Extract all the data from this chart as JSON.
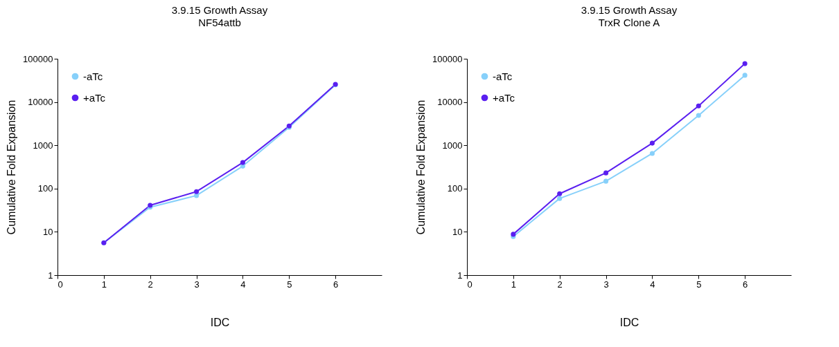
{
  "chart_data": [
    {
      "type": "line",
      "title": "3.9.15 Growth Assay",
      "subtitle": "NF54attb",
      "xlabel": "IDC",
      "ylabel": "Cumulative Fold Expansion",
      "x": [
        1,
        2,
        3,
        4,
        5,
        6
      ],
      "xlim": [
        0,
        7
      ],
      "xticks": [
        0,
        1,
        2,
        3,
        4,
        5,
        6
      ],
      "ylim": [
        1,
        100000
      ],
      "yticks": [
        1,
        10,
        100,
        1000,
        10000,
        100000
      ],
      "log": "y",
      "legend": "top left",
      "marker": "circle",
      "series": [
        {
          "name": "-aTc",
          "color": "#87d0fa",
          "values": [
            5.6,
            37,
            69,
            330,
            2600,
            25000
          ]
        },
        {
          "name": "+aTc",
          "color": "#5a1ff0",
          "values": [
            5.6,
            41,
            85,
            400,
            2800,
            25700
          ]
        }
      ]
    },
    {
      "type": "line",
      "title": "3.9.15 Growth Assay",
      "subtitle": "TrxR Clone A",
      "xlabel": "IDC",
      "ylabel": "Cumulative Fold Expansion",
      "x": [
        1,
        2,
        3,
        4,
        5,
        6
      ],
      "xlim": [
        0,
        7
      ],
      "xticks": [
        0,
        1,
        2,
        3,
        4,
        5,
        6
      ],
      "ylim": [
        1,
        100000
      ],
      "yticks": [
        1,
        10,
        100,
        1000,
        10000,
        100000
      ],
      "log": "y",
      "legend": "top left",
      "marker": "circle",
      "series": [
        {
          "name": "-aTc",
          "color": "#87d0fa",
          "values": [
            7.8,
            59,
            148,
            650,
            4900,
            41500
          ]
        },
        {
          "name": "+aTc",
          "color": "#5a1ff0",
          "values": [
            8.8,
            76,
            230,
            1120,
            8100,
            77000
          ]
        }
      ]
    }
  ]
}
